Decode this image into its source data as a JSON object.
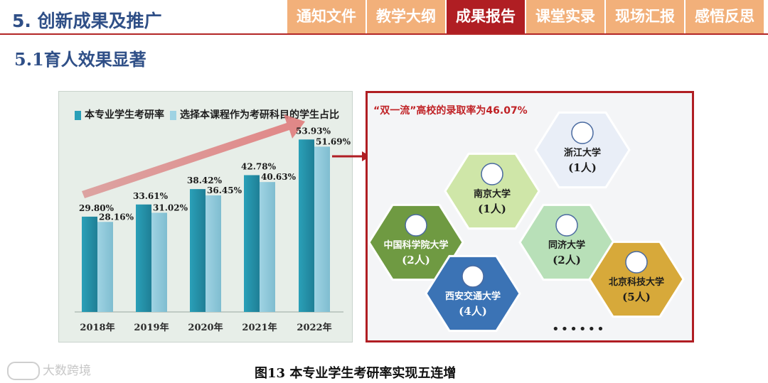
{
  "header": {
    "title": "5. 创新成果及推广",
    "tabs": [
      {
        "label": "通知文件",
        "active": false
      },
      {
        "label": "教学大纲",
        "active": false
      },
      {
        "label": "成果报告",
        "active": true
      },
      {
        "label": "课堂实录",
        "active": false
      },
      {
        "label": "现场汇报",
        "active": false
      },
      {
        "label": "感悟反思",
        "active": false
      }
    ]
  },
  "subtitle": "5.1育人效果显著",
  "chart_data": {
    "type": "bar",
    "title": "",
    "xlabel": "",
    "ylabel": "",
    "categories": [
      "2018年",
      "2019年",
      "2020年",
      "2021年",
      "2022年"
    ],
    "series": [
      {
        "name": "本专业学生考研率",
        "values": [
          29.8,
          33.61,
          38.42,
          42.78,
          53.93
        ],
        "labels": [
          "29.80%",
          "33.61%",
          "38.42%",
          "42.78%",
          "53.93%"
        ],
        "color": "#2aa0b8"
      },
      {
        "name": "选择本课程作为考研科目的学生占比",
        "values": [
          28.16,
          31.02,
          36.45,
          40.63,
          51.69
        ],
        "labels": [
          "28.16%",
          "31.02%",
          "36.45%",
          "40.63%",
          "51.69%"
        ],
        "color": "#9fd3e3"
      }
    ],
    "ylim": [
      0,
      60
    ],
    "grid": false,
    "legend": "top-left",
    "annotation": "upward red arrow trend"
  },
  "universities": {
    "headline": "“双一流”高校的录取率为46.07%",
    "items": [
      {
        "name": "浙江大学",
        "count": "(1人)",
        "color": "#e9eef7"
      },
      {
        "name": "南京大学",
        "count": "(1人)",
        "color": "#cfe6a8"
      },
      {
        "name": "中国科学院大学",
        "count": "(2人)",
        "color": "#6f9a42"
      },
      {
        "name": "同济大学",
        "count": "(2人)",
        "color": "#b8e0b8"
      },
      {
        "name": "西安交通大学",
        "count": "(4人)",
        "color": "#3b73b5"
      },
      {
        "name": "北京科技大学",
        "count": "(5人)",
        "color": "#d7a93a"
      }
    ],
    "more": "••••••"
  },
  "caption": "图13 本专业学生考研率实现五连增",
  "watermark": "大数跨境"
}
